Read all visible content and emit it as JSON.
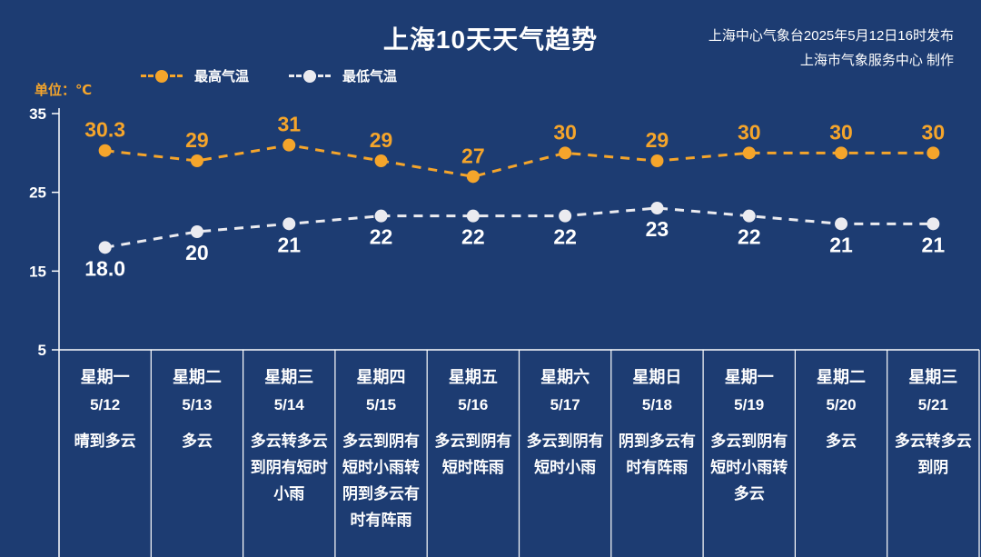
{
  "header": {
    "publisher_line1": "上海中心气象台2025年5月12日16时发布",
    "publisher_line2": "上海市气象服务中心 制作"
  },
  "chart_data": {
    "type": "line",
    "title": "上海10天天气趋势",
    "unit_label": "单位：℃",
    "categories": [
      "星期一",
      "星期二",
      "星期三",
      "星期四",
      "星期五",
      "星期六",
      "星期日",
      "星期一",
      "星期二",
      "星期三"
    ],
    "dates": [
      "5/12",
      "5/13",
      "5/14",
      "5/15",
      "5/16",
      "5/17",
      "5/18",
      "5/19",
      "5/20",
      "5/21"
    ],
    "series": [
      {
        "name": "最高气温",
        "color": "#f5a52b",
        "label_color": "#f5a52b",
        "values": [
          30.3,
          29,
          31,
          29,
          27,
          30,
          29,
          30,
          30,
          30
        ],
        "labels": [
          "30.3",
          "29",
          "31",
          "29",
          "27",
          "30",
          "29",
          "30",
          "30",
          "30"
        ]
      },
      {
        "name": "最低气温",
        "color": "#ebebf0",
        "label_color": "#ffffff",
        "values": [
          18,
          20,
          21,
          22,
          22,
          22,
          23,
          22,
          21,
          21
        ],
        "labels": [
          "18.0",
          "20",
          "21",
          "22",
          "22",
          "22",
          "23",
          "22",
          "21",
          "21"
        ]
      }
    ],
    "weather": [
      "晴到多云",
      "多云",
      "多云转多云到阴有短时小雨",
      "多云到阴有短时小雨转阴到多云有时有阵雨",
      "多云到阴有短时阵雨",
      "多云到阴有短时小雨",
      "阴到多云有时有阵雨",
      "多云到阴有短时小雨转多云",
      "多云",
      "多云转多云到阴"
    ],
    "ylim": [
      5,
      35
    ],
    "yticks": [
      35,
      25,
      15,
      5
    ],
    "grid": false,
    "line_style": "dashed",
    "legend_position": "top-left"
  }
}
